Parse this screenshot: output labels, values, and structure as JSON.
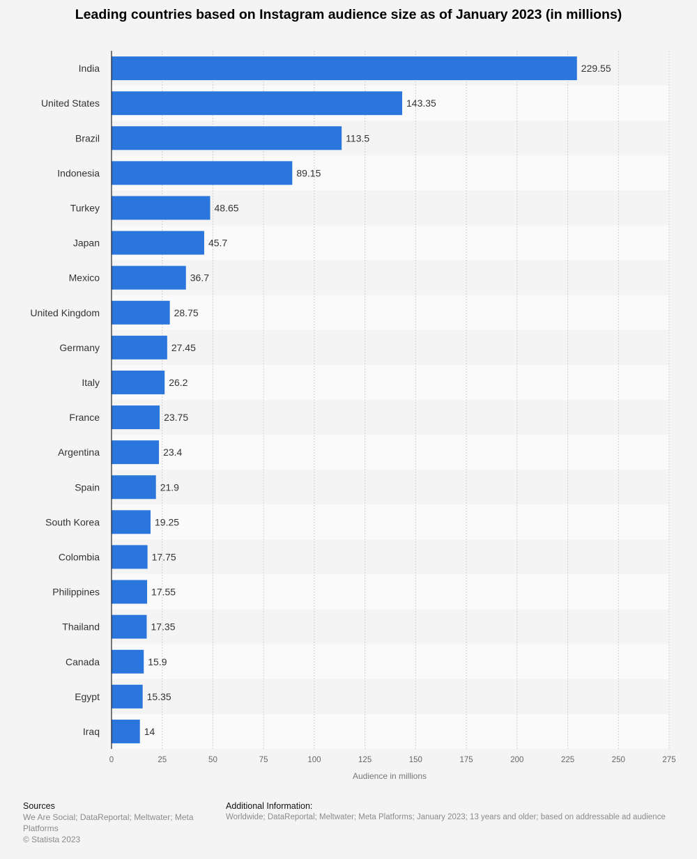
{
  "chart_data": {
    "type": "bar",
    "orientation": "horizontal",
    "title": "Leading countries based on Instagram audience size as of January 2023 (in millions)",
    "xlabel": "Audience in millions",
    "ylabel": "",
    "xlim": [
      0,
      275
    ],
    "x_ticks": [
      0,
      25,
      50,
      75,
      100,
      125,
      150,
      175,
      200,
      225,
      250,
      275
    ],
    "grid": true,
    "bar_color": "#2a76dd",
    "categories": [
      "India",
      "United States",
      "Brazil",
      "Indonesia",
      "Turkey",
      "Japan",
      "Mexico",
      "United Kingdom",
      "Germany",
      "Italy",
      "France",
      "Argentina",
      "Spain",
      "South Korea",
      "Colombia",
      "Philippines",
      "Thailand",
      "Canada",
      "Egypt",
      "Iraq"
    ],
    "values": [
      229.55,
      143.35,
      113.5,
      89.15,
      48.65,
      45.7,
      36.7,
      28.75,
      27.45,
      26.2,
      23.75,
      23.4,
      21.9,
      19.25,
      17.75,
      17.55,
      17.35,
      15.9,
      15.35,
      14
    ],
    "value_labels": [
      "229.55",
      "143.35",
      "113.5",
      "89.15",
      "48.65",
      "45.7",
      "36.7",
      "28.75",
      "27.45",
      "26.2",
      "23.75",
      "23.4",
      "21.9",
      "19.25",
      "17.75",
      "17.55",
      "17.35",
      "15.9",
      "15.35",
      "14"
    ]
  },
  "footer": {
    "sources_heading": "Sources",
    "sources_text": "We Are Social; DataReportal; Meltwater; Meta Platforms",
    "copyright": "© Statista 2023",
    "additional_heading": "Additional Information:",
    "additional_text": "Worldwide; DataReportal; Meltwater; Meta Platforms; January 2023; 13 years and older; based on addressable ad audience"
  }
}
